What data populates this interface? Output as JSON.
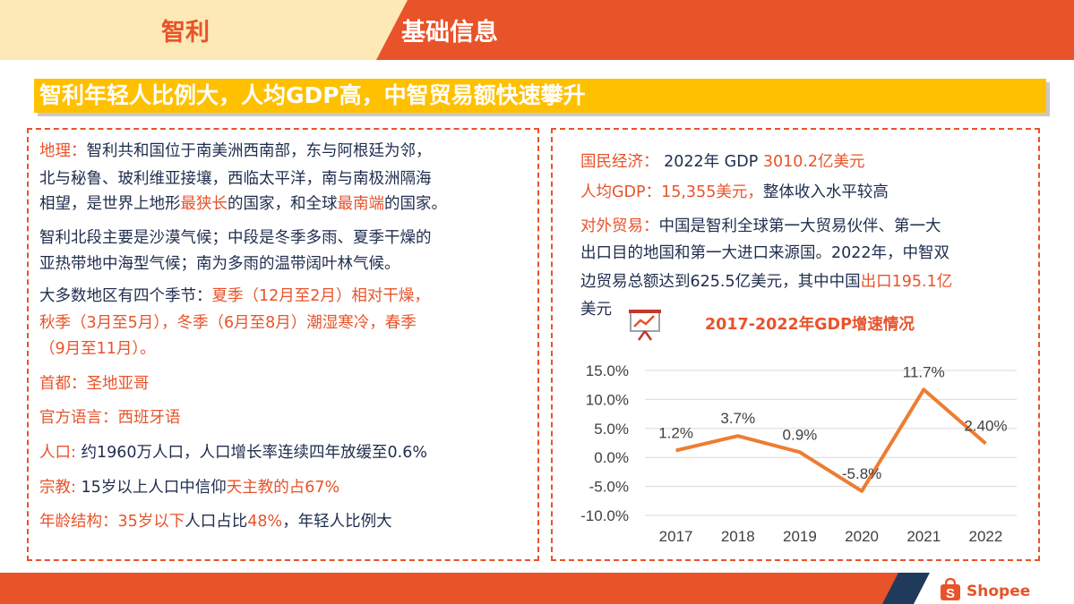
{
  "header": {
    "country": "智利",
    "title": "基础信息"
  },
  "banner": "智利年轻人比例大，人均GDP高，中智贸易额快速攀升",
  "left": {
    "geo": {
      "label": "地理：",
      "l1": "智利共和国位于南美洲西南部，东与阿根廷为邻，",
      "l2": "北与秘鲁、玻利维亚接壤，西临太平洋，南与南极洲隔海",
      "l3a": "相望，是世界上地形",
      "l3b": "最狭长",
      "l3c": "的国家，和全球",
      "l3d": "最南端",
      "l3e": "的国家。"
    },
    "climate": {
      "l1": "智利北段主要是沙漠气候；中段是冬季多雨、夏季干燥的",
      "l2": "亚热带地中海型气候；南为多雨的温带阔叶林气候。"
    },
    "seasons": {
      "l1a": "大多数地区有四个季节：",
      "l1b": "夏季（12月至2月）相对干燥，",
      "l2": "秋季（3月至5月），冬季（6月至8月）潮湿寒冷，春季",
      "l3": "（9月至11月）。"
    },
    "capital": "首都：圣地亚哥",
    "language": "官方语言：西班牙语",
    "population": {
      "label": "人口:",
      "text": " 约1960万人口，人口增长率连续四年放缓至0.6%"
    },
    "religion": {
      "label": "宗教:",
      "t1": " 15岁以上人口中信仰",
      "t2": "天主教的占67%"
    },
    "age": {
      "label": "年龄结构：",
      "t1": "35岁以下",
      "t2": "人口占比",
      "t3": "48%",
      "t4": "，年轻人比例大"
    }
  },
  "right": {
    "economy": {
      "label": "国民经济：",
      "t1": " 2022年 GDP ",
      "t2": "3010.2亿美元"
    },
    "gdp_pc": {
      "label": "人均GDP：15,355美元，",
      "t1": "整体收入水平较高"
    },
    "trade": {
      "label": "对外贸易：",
      "l1": "中国是智利全球第一大贸易伙伴、第一大",
      "l2": "出口目的地国和第一大进口来源国。2022年，中智双",
      "l3a": "边贸易总额达到625.5亿美元，其中中国",
      "l3b": "出口195.1亿",
      "l4": "美元"
    }
  },
  "chart_data": {
    "type": "line",
    "title": "2017-2022年GDP增速情况",
    "categories": [
      "2017",
      "2018",
      "2019",
      "2020",
      "2021",
      "2022"
    ],
    "values": [
      1.2,
      3.7,
      0.9,
      -5.8,
      11.7,
      2.4
    ],
    "data_labels": [
      "1.2%",
      "3.7%",
      "0.9%",
      "-5.8%",
      "11.7%",
      "2.40%"
    ],
    "yticks": [
      "15.0%",
      "10.0%",
      "5.0%",
      "0.0%",
      "-5.0%",
      "-10.0%"
    ],
    "ylim": [
      -10,
      15
    ],
    "grid": true,
    "color": "#ed7d31"
  },
  "footer": {
    "brand": "Shopee",
    "accent": "#e8532a"
  }
}
